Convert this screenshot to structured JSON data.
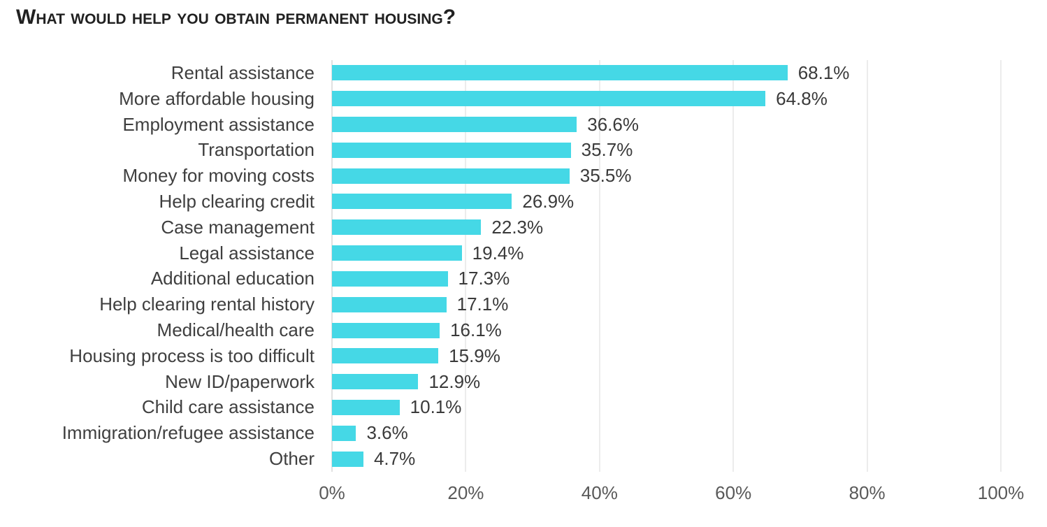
{
  "chart_data": {
    "type": "bar",
    "orientation": "horizontal",
    "title": "What would help you obtain permanent housing?",
    "categories": [
      "Rental assistance",
      "More affordable housing",
      "Employment assistance",
      "Transportation",
      "Money for moving costs",
      "Help clearing credit",
      "Case management",
      "Legal assistance",
      "Additional education",
      "Help clearing rental history",
      "Medical/health care",
      "Housing process is too difficult",
      "New ID/paperwork",
      "Child care assistance",
      "Immigration/refugee assistance",
      "Other"
    ],
    "values": [
      68.1,
      64.8,
      36.6,
      35.7,
      35.5,
      26.9,
      22.3,
      19.4,
      17.3,
      17.1,
      16.1,
      15.9,
      12.9,
      10.1,
      3.6,
      4.7
    ],
    "value_labels": [
      "68.1%",
      "64.8%",
      "36.6%",
      "35.7%",
      "35.5%",
      "26.9%",
      "22.3%",
      "19.4%",
      "17.3%",
      "17.1%",
      "16.1%",
      "15.9%",
      "12.9%",
      "10.1%",
      "3.6%",
      "4.7%"
    ],
    "x_ticks": [
      "0%",
      "20%",
      "40%",
      "60%",
      "80%",
      "100%"
    ],
    "x_tick_values": [
      0,
      20,
      40,
      60,
      80,
      100
    ],
    "xlim": [
      0,
      100
    ],
    "xlabel": "",
    "ylabel": "",
    "legend": "none",
    "grid": "vertical",
    "colors": {
      "bar": "#45d8e6",
      "gridline": "#d8d8d8",
      "axis_line": "#c3c3c3",
      "title_text": "#212121",
      "category_text": "#3f3f3f",
      "value_text": "#3a3a3a",
      "tick_text": "#595959",
      "background": "#ffffff"
    }
  }
}
